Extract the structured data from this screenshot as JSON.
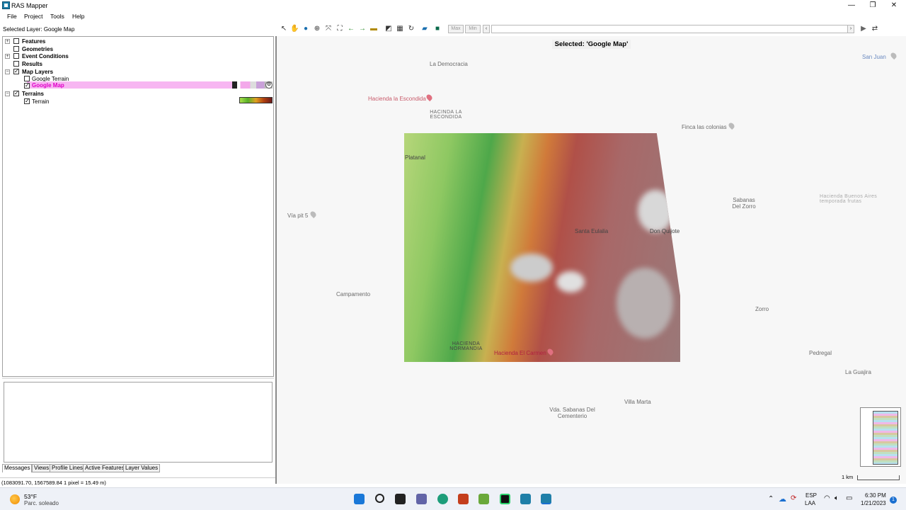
{
  "window": {
    "title": "RAS Mapper",
    "controls": {
      "minimize": "—",
      "maximize": "❐",
      "close": "✕"
    }
  },
  "menu": [
    "File",
    "Project",
    "Tools",
    "Help"
  ],
  "selected_layer": "Selected Layer: Google Map",
  "tree": {
    "features": "Features",
    "geometries": "Geometries",
    "event_conditions": "Event Conditions",
    "results": "Results",
    "map_layers": "Map Layers",
    "google_terrain": "Google Terrain",
    "google_map": "Google Map",
    "terrains": "Terrains",
    "terrain": "Terrain"
  },
  "toolbar": {
    "max": "Max",
    "min": "Min"
  },
  "bottom_tabs": [
    "Messages",
    "Views",
    "Profile Lines",
    "Active Features",
    "Layer Values"
  ],
  "status": {
    "coords": "(1083091.70, 1567589.84  1 pixel = 15.49 m)"
  },
  "map": {
    "selected_title": "Selected: 'Google Map'",
    "places": {
      "la_democracia": "La Democracia",
      "hacienda_escondida": "Hacienda la Escondida",
      "hacinda_escondida": "HACINDA LA ESCONDIDA",
      "finca_colonias": "Finca las colonias",
      "san_juan": "San Juan",
      "platanal": "Platanal",
      "sabanas_zorro": "Sabanas Del Zorro",
      "hacienda_buenos_aires": "Hacienda Buenos Aires temporada frutas",
      "via_pit": "Vía pit 5",
      "santa_eulalia": "Santa Eulalia",
      "don_quijote": "Don Quijote",
      "campamento": "Campamento",
      "zorro": "Zorro",
      "pedregal": "Pedregal",
      "la_guajira": "La Guajira",
      "hacienda_normandia": "HACIENDA NORMANDIA",
      "hacienda_carmen": "Hacienda El Carmen",
      "villa_marta": "Villa Marta",
      "vda_sabanas": "Vda. Sabanas Del Cementerio"
    },
    "scale": "1 km"
  },
  "taskbar": {
    "weather_temp": "53°F",
    "weather_desc": "Parc. soleado",
    "lang1": "ESP",
    "lang2": "LAA",
    "time": "6:30 PM",
    "date": "1/21/2023",
    "notifications": "1"
  }
}
